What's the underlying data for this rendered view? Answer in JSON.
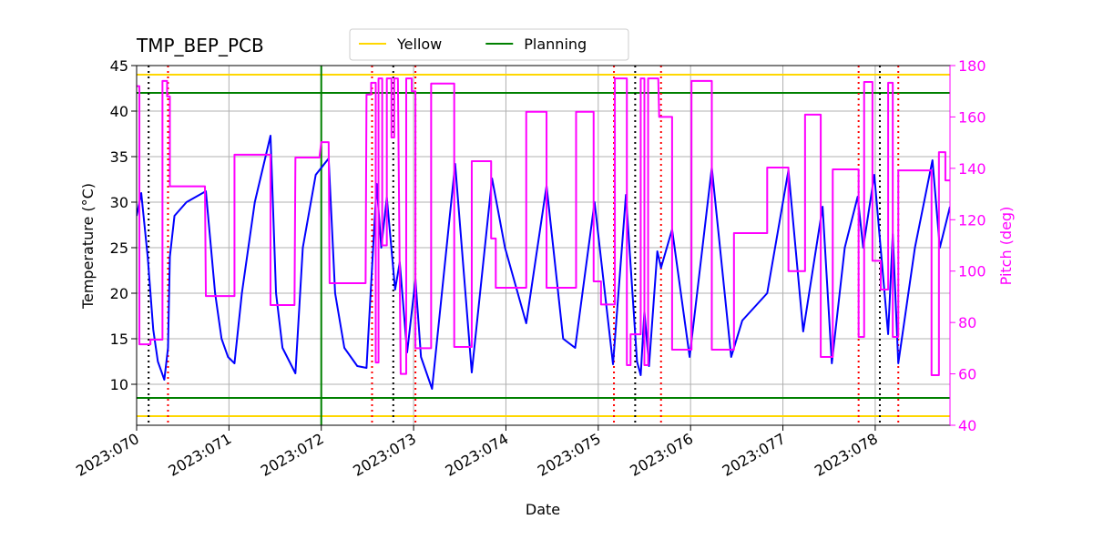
{
  "chart_data": {
    "type": "line",
    "title": "TMP_BEP_PCB",
    "xlabel": "Date",
    "ylabel": "Temperature (°C)",
    "y2label": "Pitch (deg)",
    "xlim": [
      70,
      78.81
    ],
    "xticks": [
      {
        "value": 70,
        "label": "2023:070"
      },
      {
        "value": 71,
        "label": "2023:071"
      },
      {
        "value": 72,
        "label": "2023:072"
      },
      {
        "value": 73,
        "label": "2023:073"
      },
      {
        "value": 74,
        "label": "2023:074"
      },
      {
        "value": 75,
        "label": "2023:075"
      },
      {
        "value": 76,
        "label": "2023:076"
      },
      {
        "value": 77,
        "label": "2023:077"
      },
      {
        "value": 78,
        "label": "2023:078"
      }
    ],
    "ylim": [
      5.5,
      45
    ],
    "yticks": [
      10,
      15,
      20,
      25,
      30,
      35,
      40,
      45
    ],
    "y2lim": [
      40,
      180
    ],
    "y2ticks": [
      40,
      60,
      80,
      100,
      120,
      140,
      160,
      180
    ],
    "y2color": "#ff00ff",
    "grid": true,
    "legend": "upper center",
    "series": [
      {
        "color": "#0000ff",
        "x": [
          70.0,
          70.05,
          70.12,
          70.18,
          70.23,
          70.3,
          70.34,
          70.36,
          70.41,
          70.54,
          70.75,
          70.85,
          70.92,
          70.99,
          71.06,
          71.14,
          71.28,
          71.45,
          71.51,
          71.58,
          71.72,
          71.8,
          71.94,
          72.08,
          72.15,
          72.25,
          72.39,
          72.49,
          72.6,
          72.65,
          72.71,
          72.8,
          72.85,
          72.93,
          73.02,
          73.08,
          73.2,
          73.45,
          73.63,
          73.85,
          73.99,
          74.22,
          74.44,
          74.62,
          74.75,
          74.96,
          75.16,
          75.3,
          75.42,
          75.46,
          75.5,
          75.55,
          75.64,
          75.68,
          75.8,
          75.99,
          76.23,
          76.44,
          76.56,
          76.83,
          77.06,
          77.22,
          77.43,
          77.53,
          77.67,
          77.81,
          77.87,
          77.99,
          78.14,
          78.19,
          78.25,
          78.43,
          78.62,
          78.7,
          78.81
        ],
        "values": [
          28.5,
          31,
          24,
          16,
          12.5,
          10.5,
          14,
          24,
          28.5,
          30,
          31.2,
          20,
          15,
          13,
          12.3,
          20,
          30,
          37.3,
          20,
          14,
          11.2,
          25,
          33,
          34.8,
          20,
          14,
          12,
          11.8,
          32,
          25,
          30.5,
          20.4,
          23.4,
          13.5,
          21.5,
          13,
          9.5,
          34.2,
          11.3,
          32.6,
          25,
          16.7,
          31.8,
          15,
          14,
          30,
          12.2,
          30.8,
          12.5,
          11,
          18,
          12,
          24.6,
          22.8,
          27,
          13,
          33.8,
          13,
          17,
          20,
          33.5,
          15.8,
          29.5,
          12.3,
          25,
          30.6,
          25,
          33,
          15.5,
          26.5,
          12.3,
          25,
          34.6,
          25,
          29.5
        ]
      },
      {
        "color": "#ff00ff",
        "axis": "y2",
        "x": [
          70.0,
          70.03,
          70.03,
          70.15,
          70.15,
          70.28,
          70.28,
          70.33,
          70.33,
          70.36,
          70.36,
          70.74,
          70.75,
          71.06,
          71.06,
          71.45,
          71.45,
          71.71,
          71.72,
          71.98,
          72.0,
          72.08,
          72.09,
          72.48,
          72.49,
          72.54,
          72.54,
          72.59,
          72.59,
          72.62,
          72.62,
          72.66,
          72.66,
          72.71,
          72.71,
          72.76,
          72.76,
          72.79,
          72.79,
          72.83,
          72.86,
          72.92,
          72.92,
          72.98,
          72.98,
          73.02,
          73.02,
          73.19,
          73.19,
          73.44,
          73.44,
          73.63,
          73.63,
          73.84,
          73.84,
          73.89,
          73.89,
          74.22,
          74.22,
          74.44,
          74.44,
          74.76,
          74.76,
          74.95,
          74.95,
          75.03,
          75.03,
          75.18,
          75.18,
          75.31,
          75.31,
          75.35,
          75.35,
          75.46,
          75.46,
          75.5,
          75.5,
          75.54,
          75.54,
          75.65,
          75.66,
          75.8,
          75.8,
          76.01,
          76.01,
          76.23,
          76.23,
          76.47,
          76.47,
          76.83,
          76.83,
          77.06,
          77.06,
          77.24,
          77.24,
          77.41,
          77.41,
          77.54,
          77.54,
          77.82,
          77.82,
          77.88,
          77.88,
          77.97,
          77.97,
          78.06,
          78.06,
          78.14,
          78.14,
          78.19,
          78.19,
          78.25,
          78.25,
          78.61,
          78.61,
          78.69,
          78.69,
          78.76,
          78.76,
          78.81
        ],
        "values": [
          172,
          172,
          71.5,
          71.5,
          73.3,
          73.3,
          174,
          174,
          168,
          168,
          133,
          133,
          90.3,
          90.3,
          145.3,
          145.3,
          86.8,
          86.8,
          144.2,
          144.2,
          150.2,
          150.2,
          95.3,
          95.3,
          168.7,
          168.7,
          173.3,
          173.3,
          64.4,
          64.4,
          175,
          175,
          110,
          110,
          175,
          175,
          152,
          152,
          175,
          175,
          60,
          60,
          175,
          175,
          170,
          170,
          70,
          70,
          173,
          173,
          70.5,
          70.5,
          142.8,
          142.8,
          112.7,
          112.7,
          93.5,
          93.5,
          162,
          162,
          93.5,
          93.5,
          162,
          162,
          96,
          96,
          87,
          87,
          175,
          175,
          63.4,
          63.4,
          75.4,
          75.4,
          175,
          175,
          63.4,
          63.4,
          175,
          175,
          160,
          160,
          69.4,
          69.4,
          174,
          174,
          69.4,
          69.4,
          114.8,
          114.8,
          140.3,
          140.3,
          100,
          100,
          160.9,
          160.9,
          66.6,
          66.6,
          139.6,
          139.6,
          74.4,
          74.4,
          173.6,
          173.6,
          104,
          104,
          92.8,
          92.8,
          173.3,
          173.3,
          74.4,
          74.4,
          139.2,
          139.2,
          59.5,
          59.5,
          146.3,
          146.3,
          135.3,
          135.3
        ]
      }
    ],
    "limits": [
      {
        "name": "Yellow",
        "color": "#ffd700",
        "values": [
          6.5,
          44
        ]
      },
      {
        "name": "Planning",
        "color": "#008000",
        "values": [
          8.5,
          42
        ]
      }
    ],
    "vlines": [
      {
        "color": "#008000",
        "dashed": false,
        "x": [
          72
        ]
      },
      {
        "color": "#000000",
        "dashed": true,
        "x": [
          70.13,
          72.78,
          75.4,
          78.05
        ]
      },
      {
        "color": "#ff0000",
        "dashed": true,
        "x": [
          70.34,
          72.55,
          73.02,
          75.17,
          75.68,
          77.82,
          78.25
        ]
      }
    ]
  }
}
